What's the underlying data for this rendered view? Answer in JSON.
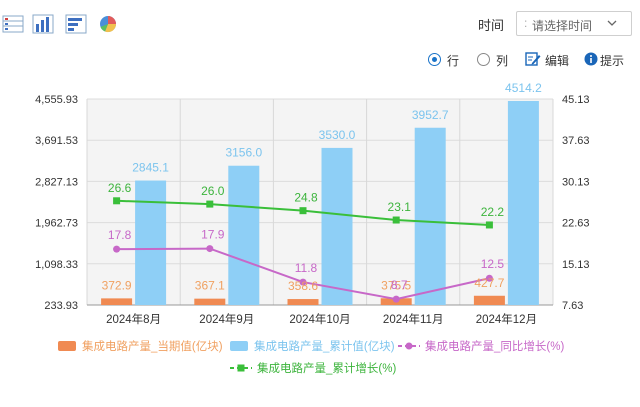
{
  "toolbar": {
    "icons": [
      "table-view-icon",
      "bar-chart-icon",
      "horizontal-bar-icon",
      "pie-chart-icon"
    ],
    "time_label": "时间",
    "time_separator": ":",
    "time_placeholder": "请选择时间"
  },
  "options": {
    "row_label": "行",
    "column_label": "列",
    "edit_label": "编辑",
    "hint_label": "提示",
    "row_selected": true
  },
  "colors": {
    "current": "#f08a52",
    "cumulative": "#8ecff6",
    "yoy": "#c768c8",
    "cum_growth": "#3abf3a",
    "label_current": "#f0a060",
    "label_cumulative": "#7cc4ee",
    "label_yoy": "#c768c8",
    "label_cum_growth": "#3db43d"
  },
  "chart_data": {
    "type": "bar",
    "categories": [
      "2024年8月",
      "2024年9月",
      "2024年10月",
      "2024年11月",
      "2024年12月"
    ],
    "y_left_ticks": [
      "4,555.93",
      "3,691.53",
      "2,827.13",
      "1,962.73",
      "1,098.33",
      "233.93"
    ],
    "y_right_ticks": [
      "45.13",
      "37.63",
      "30.13",
      "22.63",
      "15.13",
      "7.63"
    ],
    "ylim_left": [
      233.93,
      4555.93
    ],
    "ylim_right": [
      7.63,
      45.13
    ],
    "grid": true,
    "legend_position": "bottom",
    "series": [
      {
        "name": "集成电路产量_当期值(亿块)",
        "type": "bar",
        "axis": "left",
        "values": [
          372.9,
          367.1,
          358.6,
          375.5,
          427.7
        ],
        "labels": [
          "372.9",
          "367.1",
          "358.6",
          "375.5",
          "427.7"
        ]
      },
      {
        "name": "集成电路产量_累计值(亿块)",
        "type": "bar",
        "axis": "left",
        "values": [
          2845.1,
          3156.0,
          3530.0,
          3952.7,
          4514.2
        ],
        "labels": [
          "2845.1",
          "3156.0",
          "3530.0",
          "3952.7",
          "4514.2"
        ]
      },
      {
        "name": "集成电路产量_同比增长(%)",
        "type": "line",
        "axis": "right",
        "values": [
          17.8,
          17.9,
          11.8,
          8.7,
          12.5
        ],
        "labels": [
          "17.8",
          "17.9",
          "11.8",
          "8.7",
          "12.5"
        ]
      },
      {
        "name": "集成电路产量_累计增长(%)",
        "type": "line",
        "axis": "right",
        "values": [
          26.6,
          26.0,
          24.8,
          23.1,
          22.2
        ],
        "labels": [
          "26.6",
          "26.0",
          "24.8",
          "23.1",
          "22.2"
        ]
      }
    ]
  }
}
